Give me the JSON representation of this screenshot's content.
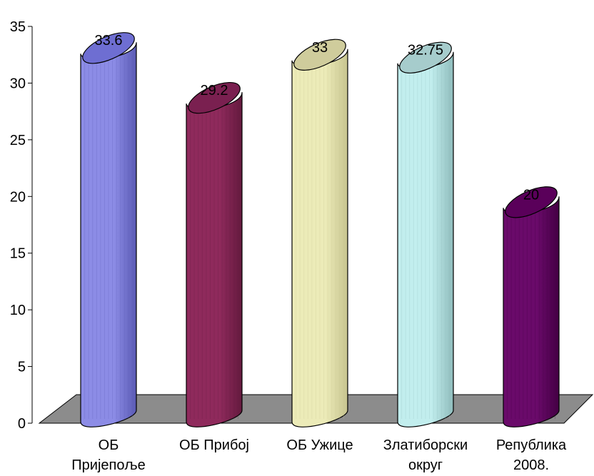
{
  "chart_data": {
    "type": "bar",
    "style": "3d-cylinder",
    "categories": [
      [
        "ОБ",
        "Пријепоље"
      ],
      [
        "ОБ Прибој"
      ],
      [
        "ОБ Ужице"
      ],
      [
        "Златиборски",
        "округ"
      ],
      [
        "Република",
        "2008."
      ]
    ],
    "values": [
      33.6,
      29.2,
      33,
      32.75,
      20
    ],
    "value_labels": [
      "33.6",
      "29.2",
      "33",
      "32.75",
      "20"
    ],
    "ylim": [
      0,
      35
    ],
    "y_ticks": [
      "0",
      "5",
      "10",
      "15",
      "20",
      "25",
      "30",
      "35"
    ],
    "grid": false,
    "legend": "none",
    "title": "",
    "xlabel": "",
    "ylabel": "",
    "colors": [
      {
        "main": "#8c8ce6",
        "dark": "#5a5ab4",
        "top": "#6e6ed2"
      },
      {
        "main": "#8f2a5c",
        "dark": "#641a3e",
        "top": "#7a2050"
      },
      {
        "main": "#ecebb8",
        "dark": "#c7c48f",
        "top": "#cfcc9c"
      },
      {
        "main": "#c2eeee",
        "dark": "#8fbcbc",
        "top": "#a6cccc"
      },
      {
        "main": "#6a0a6a",
        "dark": "#440044",
        "top": "#5a005a"
      }
    ],
    "floor_color": "#8c8c8c"
  }
}
